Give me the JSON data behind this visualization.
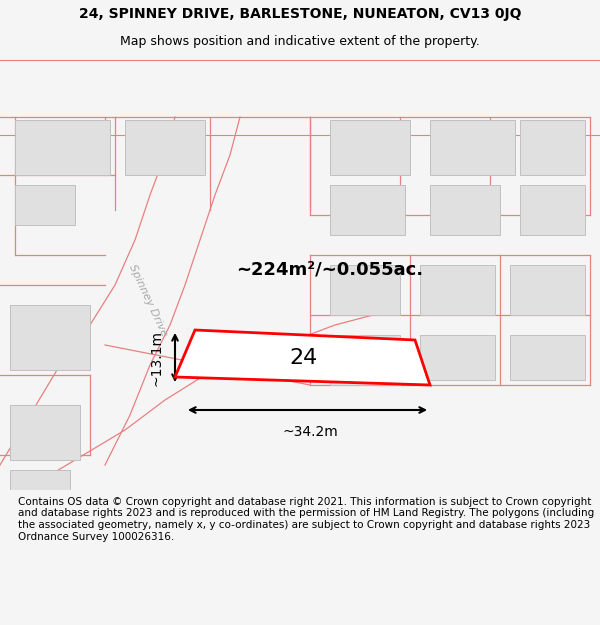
{
  "title_line1": "24, SPINNEY DRIVE, BARLESTONE, NUNEATON, CV13 0JQ",
  "title_line2": "Map shows position and indicative extent of the property.",
  "footer_text": "Contains OS data © Crown copyright and database right 2021. This information is subject to Crown copyright and database rights 2023 and is reproduced with the permission of HM Land Registry. The polygons (including the associated geometry, namely x, y co-ordinates) are subject to Crown copyright and database rights 2023 Ordnance Survey 100026316.",
  "area_text": "~224m²/~0.055ac.",
  "number_text": "24",
  "dim_width": "~34.2m",
  "dim_height": "~13.1m",
  "street_name": "Spinney Drive",
  "bg_color": "#f5f5f5",
  "map_bg": "#ffffff",
  "plot_color_fill": "#ffffff",
  "plot_color_edge": "#ff0000",
  "building_fill": "#e0e0e0",
  "building_edge": "#c0c0c0",
  "road_color": "#f0c0c0",
  "pink_line": "#e88080",
  "title_fontsize": 10,
  "footer_fontsize": 7.5
}
